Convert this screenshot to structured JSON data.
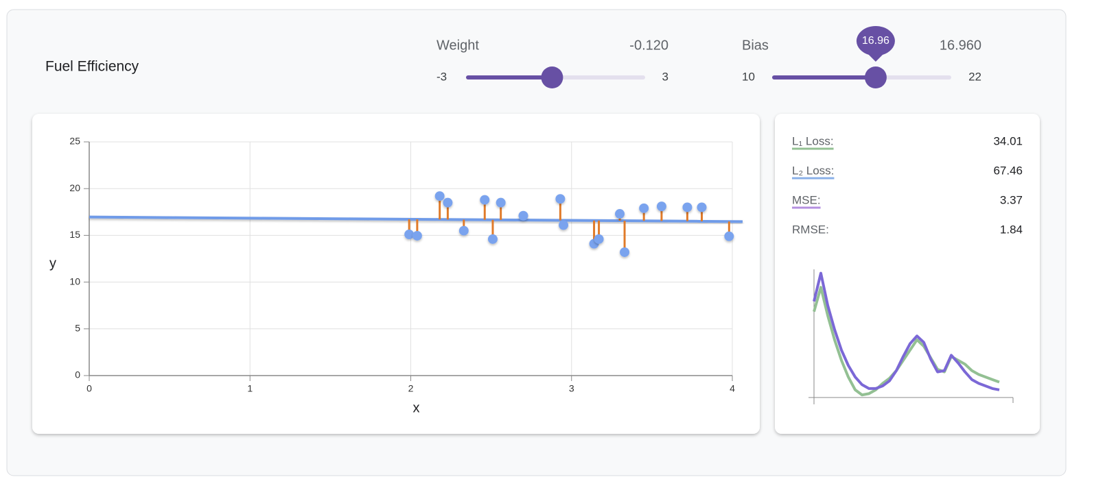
{
  "header": {
    "title": "Fuel Efficiency"
  },
  "sliders": [
    {
      "label": "Weight",
      "value": -0.12,
      "value_label": "-0.120",
      "min": -3,
      "max": 3
    },
    {
      "label": "Bias",
      "value": 16.96,
      "value_label": "16.960",
      "min": 10,
      "max": 22
    }
  ],
  "chart_data": {
    "type": "scatter",
    "xlabel": "x",
    "ylabel": "y",
    "x": [
      1.99,
      2.04,
      2.18,
      2.23,
      2.33,
      2.46,
      2.51,
      2.56,
      2.7,
      2.93,
      2.95,
      3.14,
      3.17,
      3.3,
      3.33,
      3.45,
      3.56,
      3.72,
      3.81,
      3.98
    ],
    "values": [
      15.1,
      14.96,
      19.2,
      18.5,
      15.5,
      18.8,
      14.6,
      18.5,
      17.1,
      18.9,
      16.1,
      14.1,
      14.6,
      17.3,
      13.2,
      17.9,
      18.1,
      18.0,
      18.0,
      14.9
    ],
    "color": "#7aa3ee",
    "line_color": "#6f9be8",
    "residual_color": "#e07b2a",
    "xlim": [
      0,
      4
    ],
    "ylim": [
      0,
      25
    ],
    "xticks": [
      0,
      1,
      2,
      3,
      4
    ],
    "yticks": [
      0,
      5,
      10,
      15,
      20,
      25
    ],
    "grid": true
  },
  "losses": [
    {
      "label": "L₁ Loss:",
      "value": 34.01,
      "color": "#93c093"
    },
    {
      "label": "L₂ Loss:",
      "value": 67.46,
      "color": "#8ab0e8"
    },
    {
      "label": "MSE:",
      "value": 3.37,
      "color": "#b48fe0"
    },
    {
      "label": "RMSE:",
      "value": 1.84
    }
  ],
  "loss_curve": {
    "ylim": [
      0,
      100
    ],
    "series": [
      {
        "color": "#93c093",
        "values": [
          67,
          86,
          64,
          45,
          29,
          16,
          6,
          2,
          3,
          6,
          11,
          15,
          21,
          29,
          37,
          45,
          40,
          31,
          22,
          20,
          32,
          29,
          26,
          21,
          18,
          16,
          14,
          12
        ]
      },
      {
        "color": "#7b68d6",
        "values": [
          75,
          97,
          72,
          53,
          37,
          25,
          16,
          10,
          7,
          7,
          9,
          13,
          21,
          32,
          42,
          48,
          43,
          30,
          20,
          21,
          33,
          27,
          20,
          14,
          11,
          9,
          7,
          6
        ]
      }
    ]
  }
}
